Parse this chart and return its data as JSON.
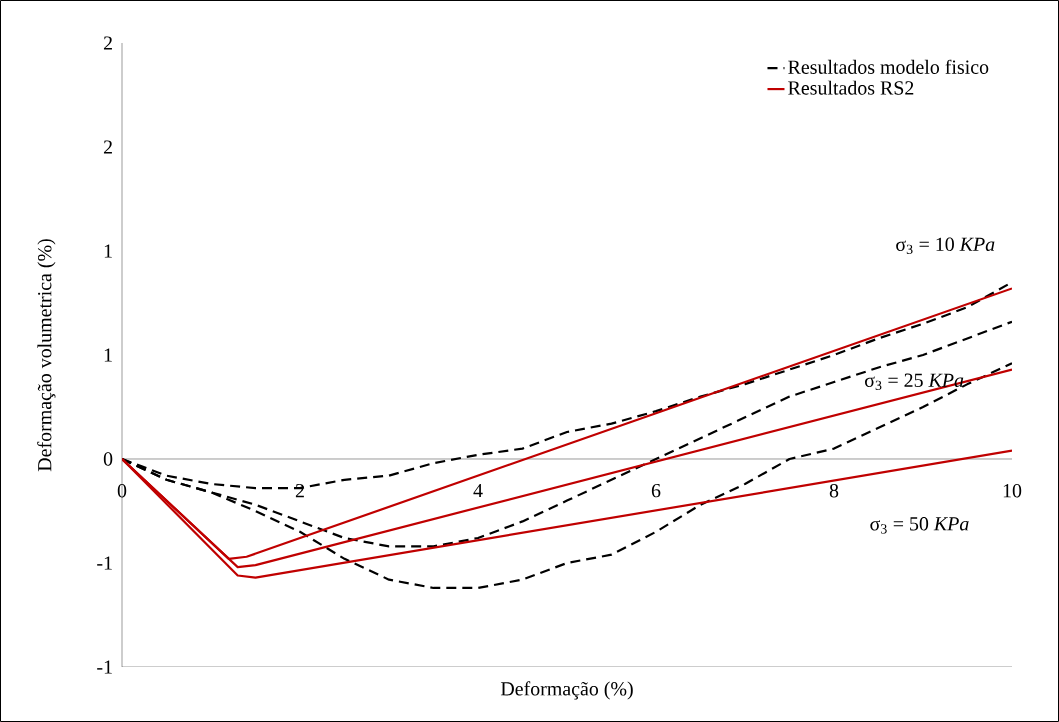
{
  "chart_data": {
    "type": "line",
    "xlabel": "Deformação (%)",
    "ylabel": "Deformação volumetrica (%)",
    "xlim": [
      0,
      10
    ],
    "ylim": [
      -1,
      2
    ],
    "xticks": [
      0,
      2,
      4,
      6,
      8,
      10
    ],
    "yticks": [
      {
        "value": -1,
        "label": "-1"
      },
      {
        "value": -0.5,
        "label": "-1"
      },
      0,
      {
        "value": 0.5,
        "label": "1"
      },
      1,
      {
        "value": 1.5,
        "label": "2"
      },
      2
    ],
    "legend": "top right",
    "marker": "none",
    "series": [
      {
        "name": "Resultados modelo fisico",
        "color": "#000000",
        "line_style": "dashed",
        "x": [
          0,
          0.5,
          1,
          1.5,
          2,
          2.5,
          3,
          3.5,
          4,
          4.5,
          5,
          5.5,
          6,
          6.5,
          7,
          7.5,
          8,
          8.5,
          9,
          9.5,
          10
        ],
        "values": [
          0,
          -0.08,
          -0.12,
          -0.14,
          -0.14,
          -0.1,
          -0.08,
          -0.02,
          0.02,
          0.05,
          0.13,
          0.17,
          0.23,
          0.3,
          0.36,
          0.43,
          0.5,
          0.58,
          0.65,
          0.73,
          0.85
        ]
      },
      {
        "color": "#000000",
        "line_style": "dashed",
        "x": [
          0,
          0.5,
          1,
          1.5,
          2,
          2.5,
          3,
          3.5,
          4,
          4.5,
          5,
          5.5,
          6,
          6.5,
          7,
          7.5,
          8,
          8.5,
          9,
          9.5,
          10
        ],
        "values": [
          0,
          -0.1,
          -0.16,
          -0.22,
          -0.3,
          -0.38,
          -0.42,
          -0.42,
          -0.38,
          -0.3,
          -0.2,
          -0.1,
          0,
          0.1,
          0.2,
          0.3,
          0.37,
          0.44,
          0.5,
          0.58,
          0.66
        ]
      },
      {
        "color": "#000000",
        "line_style": "dashed",
        "x": [
          0,
          0.5,
          1,
          1.5,
          2,
          2.5,
          3,
          3.5,
          4,
          4.5,
          5,
          5.5,
          6,
          6.5,
          7,
          7.5,
          8,
          8.5,
          9,
          9.5,
          10
        ],
        "values": [
          0,
          -0.1,
          -0.16,
          -0.25,
          -0.35,
          -0.48,
          -0.58,
          -0.62,
          -0.62,
          -0.58,
          -0.5,
          -0.46,
          -0.35,
          -0.22,
          -0.12,
          0,
          0.05,
          0.15,
          0.25,
          0.36,
          0.46
        ]
      },
      {
        "name": "Resultados RS2",
        "color": "#c00000",
        "line_style": "solid",
        "x": [
          0,
          1.2,
          1.4,
          10
        ],
        "values": [
          0,
          -0.48,
          -0.47,
          0.82
        ]
      },
      {
        "color": "#c00000",
        "line_style": "solid",
        "x": [
          0,
          1.3,
          1.5,
          10
        ],
        "values": [
          0,
          -0.52,
          -0.51,
          0.43
        ]
      },
      {
        "color": "#c00000",
        "line_style": "solid",
        "x": [
          0,
          1.3,
          1.5,
          10
        ],
        "values": [
          0,
          -0.56,
          -0.57,
          0.04
        ]
      }
    ],
    "annotations": [
      "σ$_{3}$ = 10 *KPa*",
      "σ$_{3}$ = 25 *KPa*",
      "σ$_{3}$ = 50 *KPa*"
    ]
  }
}
